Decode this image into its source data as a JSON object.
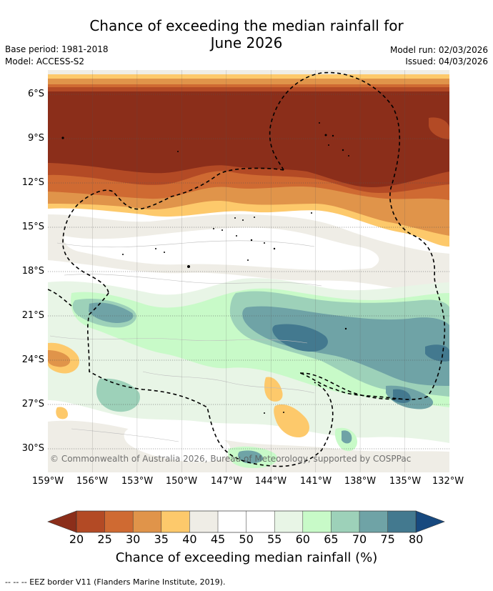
{
  "title": {
    "line1": "Chance of exceeding the median rainfall for",
    "line2": "June 2026"
  },
  "meta": {
    "base_period": "Base period: 1981-2018",
    "model": "Model: ACCESS-S2",
    "model_run": "Model run: 02/03/2026",
    "issued": "Issued: 04/03/2026"
  },
  "map": {
    "latitude_labels": [
      "6°S",
      "9°S",
      "12°S",
      "15°S",
      "18°S",
      "21°S",
      "24°S",
      "27°S",
      "30°S"
    ],
    "longitude_labels": [
      "159°W",
      "156°W",
      "153°W",
      "150°W",
      "147°W",
      "144°W",
      "141°W",
      "138°W",
      "135°W",
      "132°W"
    ],
    "copyright": "© Commonwealth of Australia 2026, Bureau of Meteorology, supported by COSPPac",
    "lat_range": [
      -31.5,
      -4.5
    ],
    "lon_range": [
      -159,
      -132
    ]
  },
  "colorbar": {
    "ticks": [
      "20",
      "25",
      "30",
      "35",
      "40",
      "45",
      "50",
      "55",
      "60",
      "65",
      "70",
      "75",
      "80"
    ],
    "colors": [
      "#8b2e1a",
      "#b34a25",
      "#cf6a32",
      "#e0944a",
      "#fdc96b",
      "#efede6",
      "#ffffff",
      "#ffffff",
      "#e8f5e6",
      "#c8fac8",
      "#9dd1b9",
      "#6fa3a6",
      "#43798f",
      "#17497f"
    ],
    "title": "Chance of exceeding median rainfall (%)"
  },
  "footnote": "-- -- -- EEZ border V11 (Flanders Marine Institute, 2019)."
}
